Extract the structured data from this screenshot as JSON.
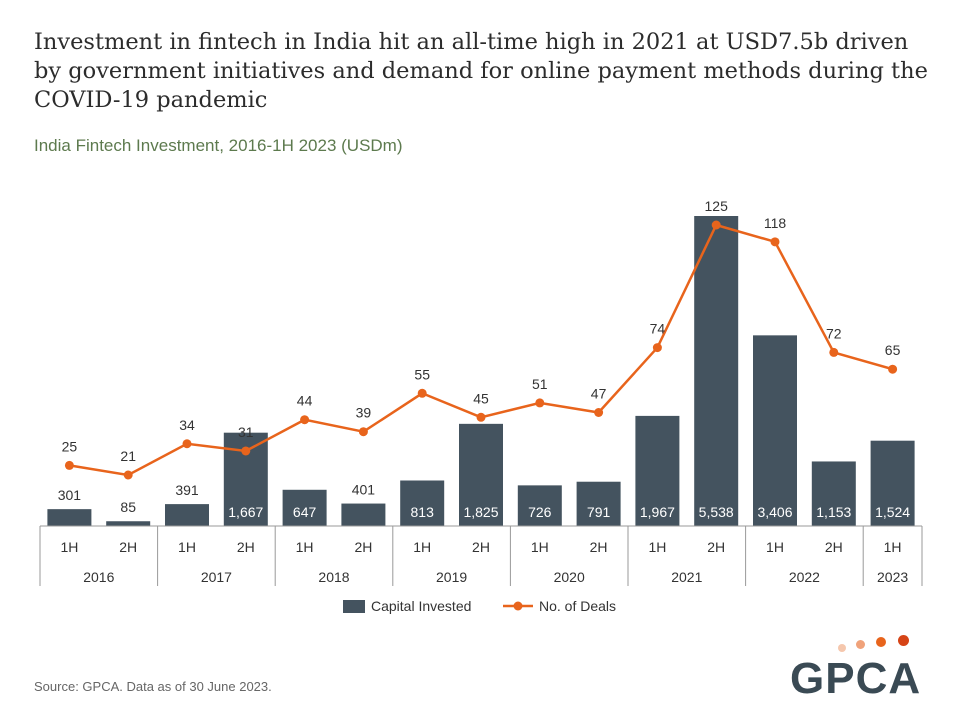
{
  "title": "Investment in fintech in India hit an all-time high in 2021 at USD7.5b driven by government initiatives and demand for online payment methods during the COVID-19 pandemic",
  "subtitle": "India Fintech Investment, 2016-1H 2023 (USDm)",
  "source": "Source: GPCA. Data as of 30 June 2023.",
  "logo_text": "GPCA",
  "colors": {
    "bar": "#44535f",
    "line": "#e8641c",
    "axis": "#999999",
    "logo_dots": [
      "#f5c7ad",
      "#f0a27a",
      "#e8641c",
      "#d64416"
    ]
  },
  "chart_data": {
    "type": "bar",
    "categories": [
      "1H 2016",
      "2H 2016",
      "1H 2017",
      "2H 2017",
      "1H 2018",
      "2H 2018",
      "1H 2019",
      "2H 2019",
      "1H 2020",
      "2H 2020",
      "1H 2021",
      "2H 2021",
      "1H 2022",
      "2H 2022",
      "1H 2023"
    ],
    "half_labels": [
      "1H",
      "2H",
      "1H",
      "2H",
      "1H",
      "2H",
      "1H",
      "2H",
      "1H",
      "2H",
      "1H",
      "2H",
      "1H",
      "2H",
      "1H"
    ],
    "years": [
      "2016",
      "2017",
      "2018",
      "2019",
      "2020",
      "2021",
      "2022",
      "2023"
    ],
    "series": [
      {
        "name": "Capital Invested",
        "type": "bar",
        "values": [
          301,
          85,
          391,
          1667,
          647,
          401,
          813,
          1825,
          726,
          791,
          1967,
          5538,
          3406,
          1153,
          1524
        ],
        "labels": [
          "301",
          "85",
          "391",
          "1,667",
          "647",
          "401",
          "813",
          "1,825",
          "726",
          "791",
          "1,967",
          "5,538",
          "3,406",
          "1,153",
          "1,524"
        ]
      },
      {
        "name": "No. of Deals",
        "type": "line",
        "values": [
          25,
          21,
          34,
          31,
          44,
          39,
          55,
          45,
          51,
          47,
          74,
          125,
          118,
          72,
          65
        ],
        "labels": [
          "25",
          "21",
          "34",
          "31",
          "44",
          "39",
          "55",
          "45",
          "51",
          "47",
          "74",
          "125",
          "118",
          "72",
          "65"
        ]
      }
    ],
    "legend": "bottom-center",
    "grid": false
  }
}
